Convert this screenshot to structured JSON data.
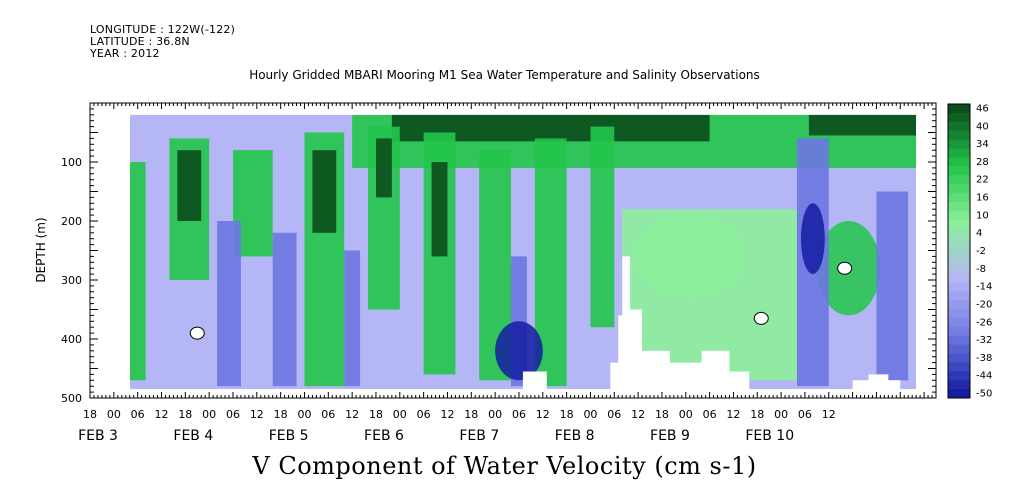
{
  "header": {
    "longitude": "LONGITUDE : 122W(-122)",
    "latitude": "LATITUDE : 36.8N",
    "year": "YEAR : 2012"
  },
  "chart_data": {
    "type": "heatmap",
    "title": "Hourly Gridded MBARI Mooring M1 Sea Water Temperature and Salinity Observations",
    "xlabel": "V Component of Water Velocity (cm s-1)",
    "ylabel": "DEPTH (m)",
    "ylim": [
      500,
      0
    ],
    "y_ticks": [
      "100",
      "200",
      "300",
      "400",
      "500"
    ],
    "x_range_hours": [
      -6,
      207
    ],
    "x_hour_tick_labels": [
      "18",
      "00",
      "06",
      "12",
      "18",
      "00",
      "06",
      "12",
      "18",
      "00",
      "06",
      "12",
      "18",
      "00",
      "06",
      "12",
      "18",
      "00",
      "06",
      "12",
      "18",
      "00",
      "06",
      "12",
      "18",
      "00",
      "06",
      "12",
      "18",
      "00",
      "06",
      "12"
    ],
    "x_day_labels": [
      "FEB  3",
      "FEB  4",
      "FEB  5",
      "FEB  6",
      "FEB  7",
      "FEB  8",
      "FEB  9",
      "FEB 10"
    ],
    "colorbar_levels": [
      "46",
      "40",
      "34",
      "28",
      "22",
      "16",
      "10",
      "4",
      "-2",
      "-8",
      "-14",
      "-20",
      "-26",
      "-32",
      "-38",
      "-44",
      "-50"
    ],
    "colors": {
      "darkest_green": "#0b4d1c",
      "green": "#22c54a",
      "light_green": "#8cf09a",
      "light_blue": "#b4b6f6",
      "blue": "#6d77e2",
      "dark_blue": "#141ca2"
    }
  }
}
